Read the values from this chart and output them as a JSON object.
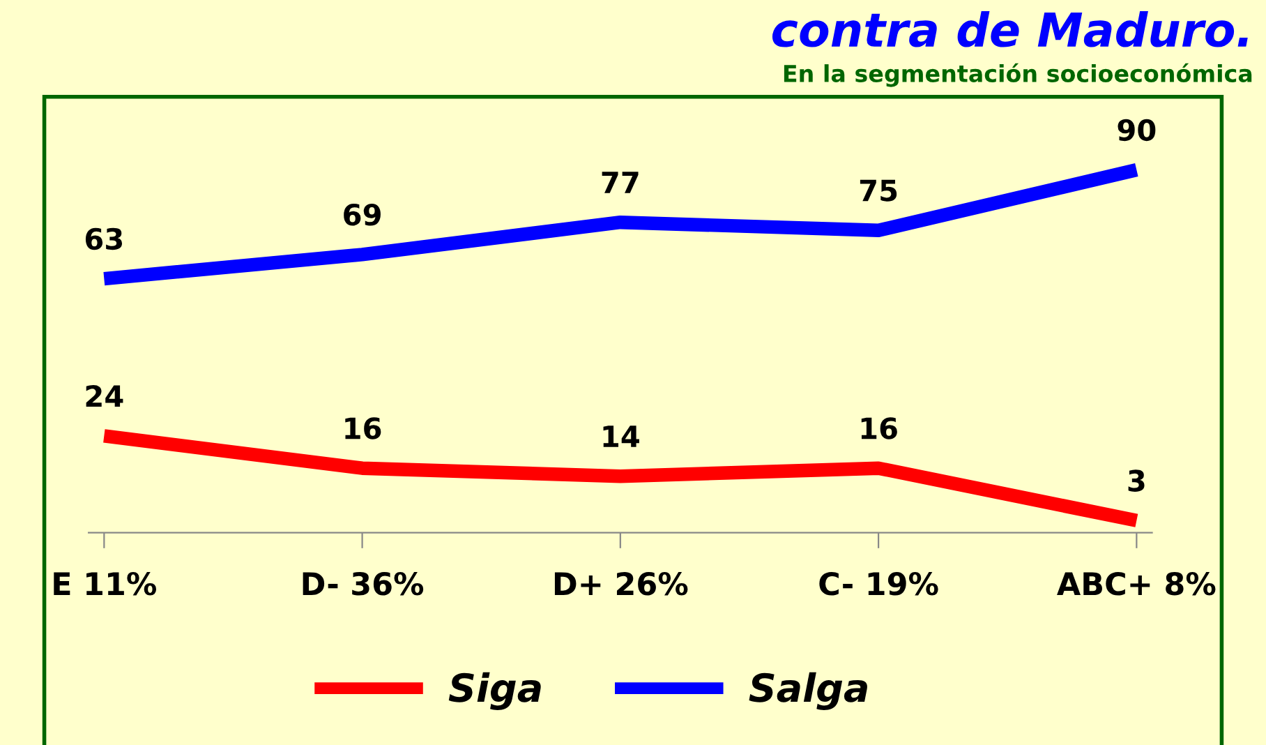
{
  "chart_data": {
    "type": "line",
    "title": "contra de Maduro.",
    "subtitle": "En la segmentación socioeconómica",
    "categories": [
      "E 11%",
      "D- 36%",
      "D+ 26%",
      "C- 19%",
      "ABC+ 8%"
    ],
    "series": [
      {
        "name": "Siga",
        "color": "#ff0000",
        "values": [
          24,
          16,
          14,
          16,
          3
        ]
      },
      {
        "name": "Salga",
        "color": "#0000ff",
        "values": [
          63,
          69,
          77,
          75,
          90
        ]
      }
    ],
    "data_labels": true,
    "legend": "bottom",
    "grid": false,
    "marker": "none",
    "line_style": "solid"
  }
}
